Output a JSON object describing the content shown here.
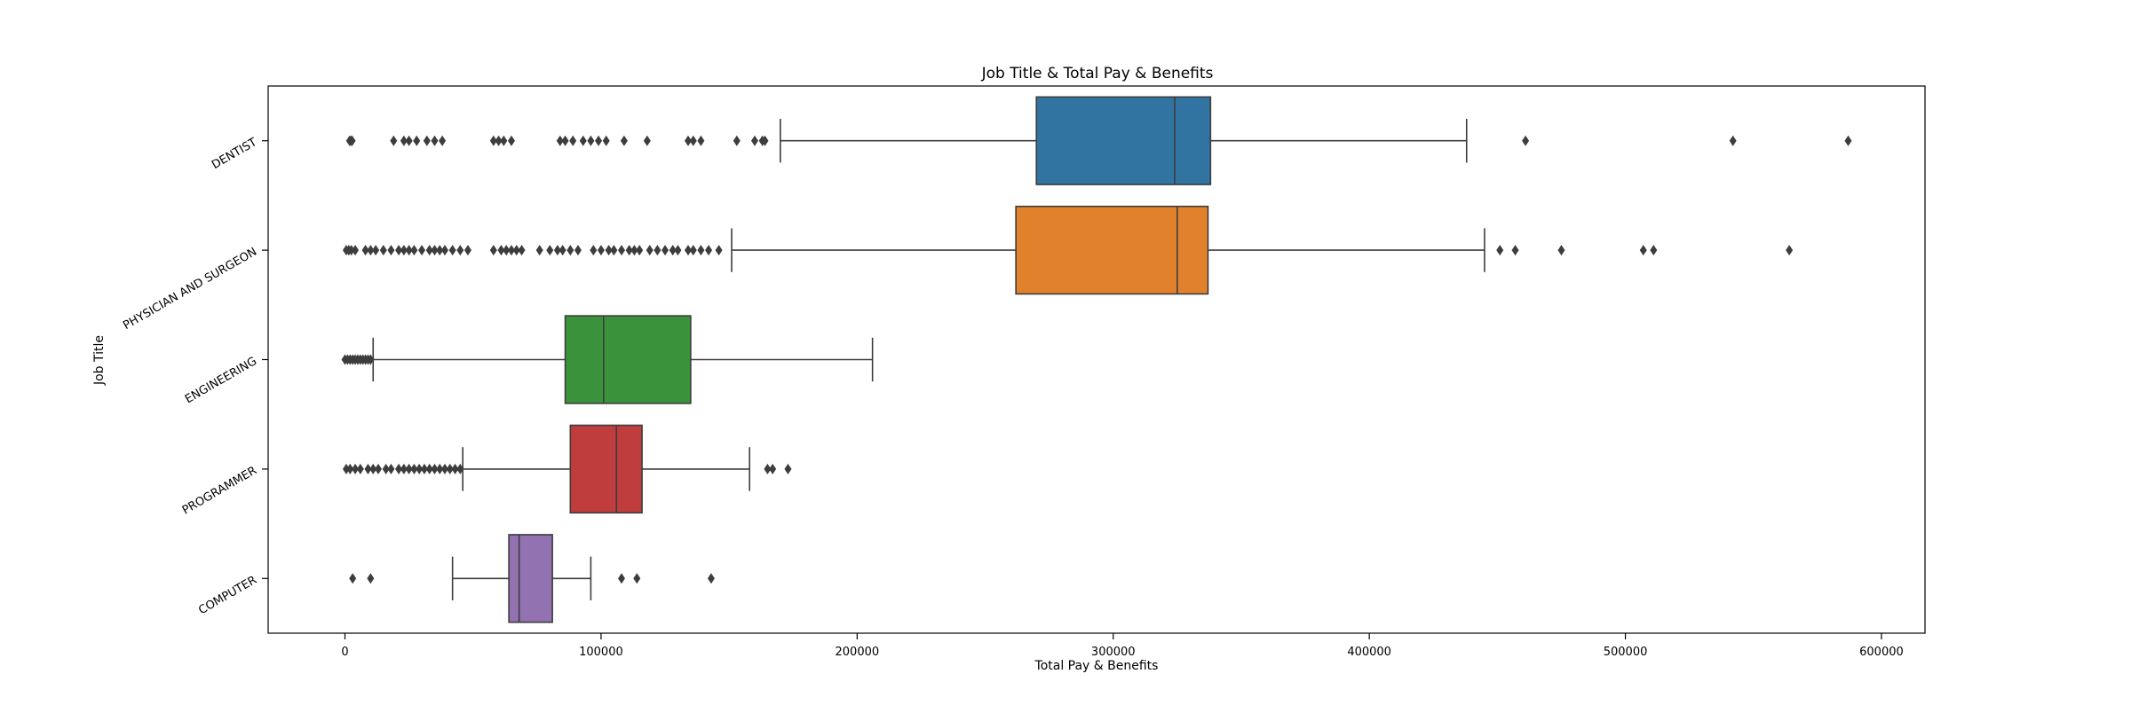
{
  "chart_data": {
    "type": "boxplot",
    "title": "Job Title & Total Pay & Benefits",
    "xlabel": "Total Pay & Benefits",
    "ylabel": "Job Title",
    "xlim": [
      -30000,
      617000
    ],
    "xticks": [
      0,
      100000,
      200000,
      300000,
      400000,
      500000,
      600000
    ],
    "xtick_labels": [
      "0",
      "100000",
      "200000",
      "300000",
      "400000",
      "500000",
      "600000"
    ],
    "orientation": "horizontal",
    "grid": false,
    "legend": "none",
    "categories": [
      "DENTIST",
      "PHYSICIAN AND SURGEON",
      "ENGINEERING",
      "PROGRAMMER",
      "COMPUTER"
    ],
    "boxes": [
      {
        "category": "DENTIST",
        "color": "#3274a1",
        "whisker_low": 170000,
        "q1": 270000,
        "median": 324000,
        "q3": 338000,
        "whisker_high": 438000,
        "outliers": [
          1800,
          2300,
          2800,
          19000,
          23000,
          25000,
          28000,
          32000,
          35000,
          38000,
          58000,
          60000,
          62000,
          65000,
          84000,
          86000,
          89000,
          93000,
          96000,
          99000,
          102000,
          109000,
          118000,
          134000,
          136000,
          139000,
          153000,
          160000,
          163000,
          164000,
          461000,
          542000,
          587000
        ]
      },
      {
        "category": "PHYSICIAN AND SURGEON",
        "color": "#e1812c",
        "whisker_low": 151000,
        "q1": 262000,
        "median": 325000,
        "q3": 337000,
        "whisker_high": 445000,
        "outliers": [
          500,
          1500,
          2500,
          4000,
          8000,
          10000,
          12000,
          15000,
          18000,
          21000,
          23000,
          25000,
          27000,
          30000,
          33000,
          35000,
          37000,
          39000,
          42000,
          45000,
          48000,
          58000,
          61000,
          63000,
          65000,
          67000,
          69000,
          76000,
          80000,
          83000,
          85000,
          88000,
          91000,
          97000,
          100000,
          103000,
          105000,
          108000,
          111000,
          113000,
          115000,
          119000,
          122000,
          125000,
          128000,
          130000,
          134000,
          136000,
          139000,
          142000,
          146000,
          451000,
          457000,
          475000,
          507000,
          511000,
          564000
        ]
      },
      {
        "category": "ENGINEERING",
        "color": "#3a923a",
        "whisker_low": 11000,
        "q1": 86000,
        "median": 101000,
        "q3": 135000,
        "whisker_high": 206000,
        "outliers": [
          0,
          1000,
          2000,
          3000,
          4000,
          5000,
          6000,
          7000,
          8000,
          9000,
          10000
        ]
      },
      {
        "category": "PROGRAMMER",
        "color": "#c03d3e",
        "whisker_low": 46000,
        "q1": 88000,
        "median": 106000,
        "q3": 116000,
        "whisker_high": 158000,
        "outliers": [
          500,
          2000,
          4000,
          6000,
          9000,
          11000,
          13000,
          16000,
          18000,
          21000,
          23000,
          25000,
          27000,
          29000,
          31000,
          33000,
          35000,
          37000,
          39000,
          41000,
          43000,
          45000,
          165000,
          167000,
          173000
        ]
      },
      {
        "category": "COMPUTER",
        "color": "#9372b2",
        "whisker_low": 42000,
        "q1": 64000,
        "median": 68000,
        "q3": 81000,
        "whisker_high": 96000,
        "outliers": [
          3000,
          10000,
          108000,
          114000,
          143000
        ]
      }
    ]
  }
}
